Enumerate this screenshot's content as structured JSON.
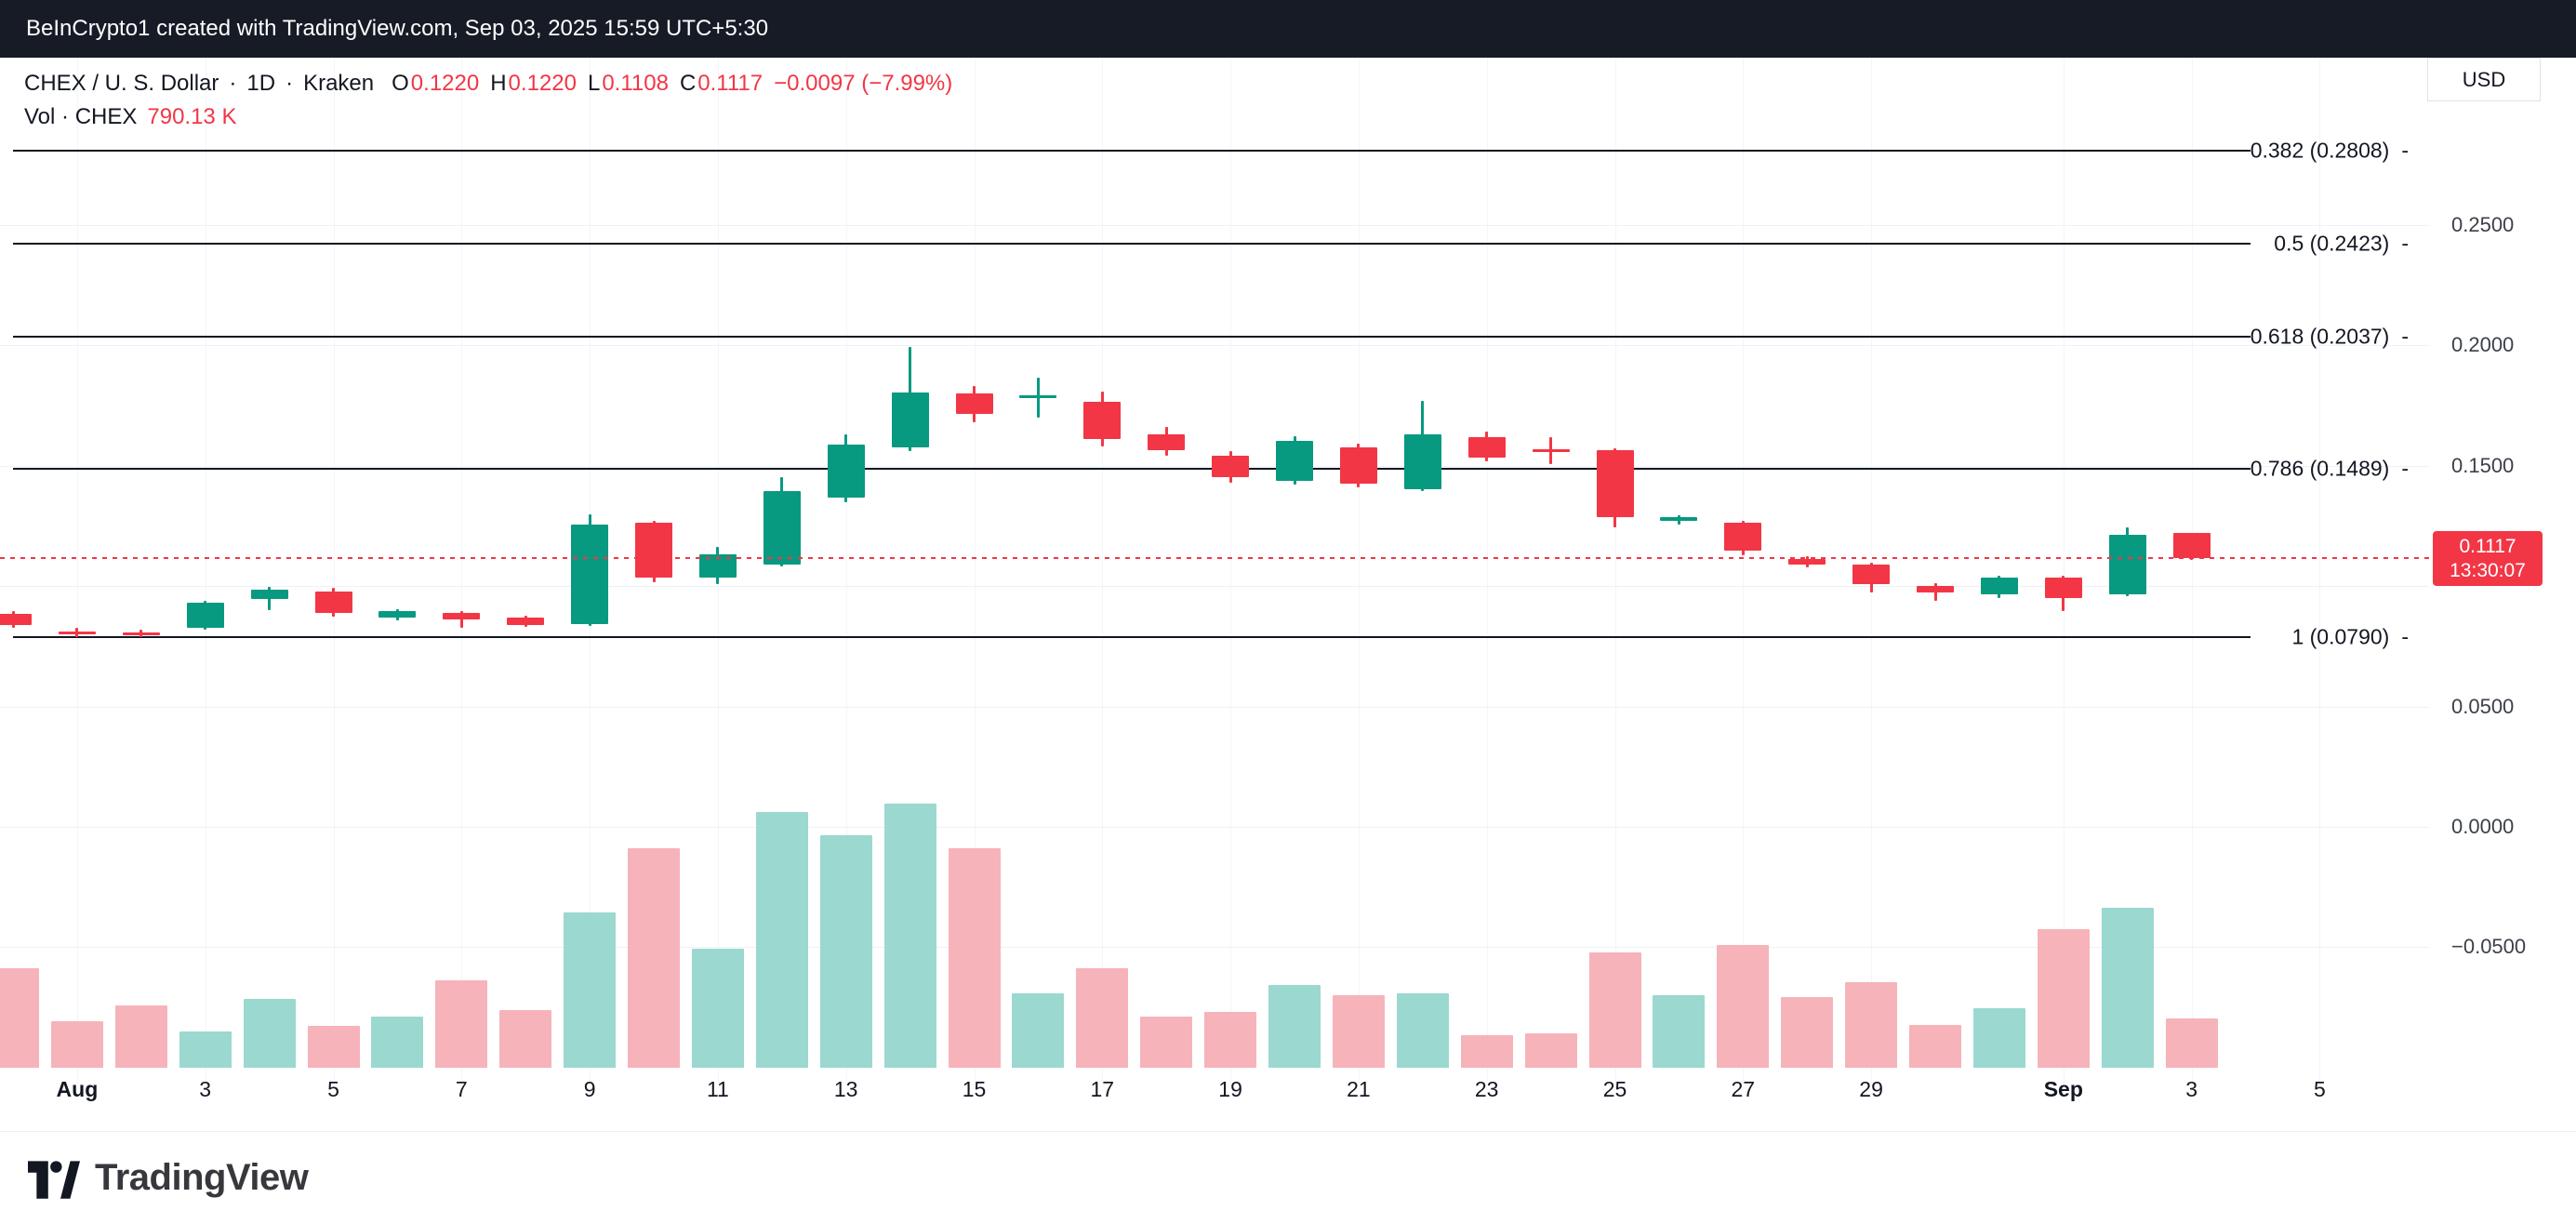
{
  "top_bar": {
    "text": "BeInCrypto1 created with TradingView.com, Sep 03, 2025 15:59 UTC+5:30"
  },
  "header": {
    "symbol": "CHEX / U. S. Dollar",
    "dot": "·",
    "interval": "1D",
    "exchange": "Kraken",
    "o_label": "O",
    "o_value": "0.1220",
    "h_label": "H",
    "h_value": "0.1220",
    "l_label": "L",
    "l_value": "0.1108",
    "c_label": "C",
    "c_value": "0.1117",
    "change": "−0.0097 (−7.99%)",
    "vol_label": "Vol · CHEX",
    "vol_value": "790.13 K"
  },
  "currency_button": {
    "label": "USD"
  },
  "price_axis": {
    "labels": [
      {
        "text": "0.2500",
        "price": 0.25
      },
      {
        "text": "0.2000",
        "price": 0.2
      },
      {
        "text": "0.1500",
        "price": 0.15
      },
      {
        "text": "0.0500",
        "price": 0.05
      },
      {
        "text": "0.0000",
        "price": 0.0
      },
      {
        "text": "−0.0500",
        "price": -0.05
      }
    ],
    "grid_prices": [
      0.25,
      0.2,
      0.15,
      0.1,
      0.05,
      0.0,
      -0.05
    ],
    "last": {
      "price": 0.1117,
      "price_text": "0.1117",
      "countdown": "13:30:07"
    }
  },
  "time_axis": {
    "labels": [
      {
        "text": "Aug",
        "i": 1,
        "bold": true
      },
      {
        "text": "3",
        "i": 3
      },
      {
        "text": "5",
        "i": 5
      },
      {
        "text": "7",
        "i": 7
      },
      {
        "text": "9",
        "i": 9
      },
      {
        "text": "11",
        "i": 11
      },
      {
        "text": "13",
        "i": 13
      },
      {
        "text": "15",
        "i": 15
      },
      {
        "text": "17",
        "i": 17
      },
      {
        "text": "19",
        "i": 19
      },
      {
        "text": "21",
        "i": 21
      },
      {
        "text": "23",
        "i": 23
      },
      {
        "text": "25",
        "i": 25
      },
      {
        "text": "27",
        "i": 27
      },
      {
        "text": "29",
        "i": 29
      },
      {
        "text": "Sep",
        "i": 32,
        "bold": true
      },
      {
        "text": "3",
        "i": 34
      },
      {
        "text": "5",
        "i": 36
      }
    ]
  },
  "fib": {
    "dash": "-",
    "levels": [
      {
        "text": "0.382 (0.2808)",
        "price": 0.2808
      },
      {
        "text": "0.5 (0.2423)",
        "price": 0.2423
      },
      {
        "text": "0.618 (0.2037)",
        "price": 0.2037
      },
      {
        "text": "0.786 (0.1489)",
        "price": 0.1489
      },
      {
        "text": "1 (0.0790)",
        "price": 0.079
      }
    ]
  },
  "footer": {
    "brand": "TradingView"
  },
  "colors": {
    "up": "#089981",
    "down": "#f23645",
    "vol_up": "#9bd8cf",
    "vol_down": "#f6b3ba",
    "accent_red": "#f23645",
    "fib_line": "#11161f",
    "topbar_bg": "#161b26"
  },
  "chart_data": {
    "type": "candlestick",
    "title": "CHEX / U. S. Dollar · 1D · Kraken",
    "volume_pane": true,
    "price_axis_ticks": [
      0.25,
      0.2,
      0.15,
      0.05,
      0.0,
      -0.05
    ],
    "visible_price_range": [
      -0.07,
      0.3
    ],
    "last": {
      "price": 0.1117,
      "change": -0.0097,
      "change_pct": -7.99,
      "countdown": "13:30:07",
      "last_volume": 790130
    },
    "fib_retracement": [
      {
        "level": 0.382,
        "price": 0.2808
      },
      {
        "level": 0.5,
        "price": 0.2423
      },
      {
        "level": 0.618,
        "price": 0.2037
      },
      {
        "level": 0.786,
        "price": 0.1489
      },
      {
        "level": 1,
        "price": 0.079
      }
    ],
    "candles": [
      {
        "t": "Jul 31",
        "o": 0.0885,
        "h": 0.0898,
        "l": 0.0828,
        "c": 0.0838,
        "v": 1580000
      },
      {
        "t": "Aug 1",
        "o": 0.0812,
        "h": 0.0825,
        "l": 0.0788,
        "c": 0.08,
        "v": 737000
      },
      {
        "t": "Aug 2",
        "o": 0.0808,
        "h": 0.0818,
        "l": 0.079,
        "c": 0.0797,
        "v": 1000000
      },
      {
        "t": "Aug 3",
        "o": 0.0827,
        "h": 0.0938,
        "l": 0.082,
        "c": 0.0931,
        "v": 580000
      },
      {
        "t": "Aug 4",
        "o": 0.0945,
        "h": 0.0998,
        "l": 0.0902,
        "c": 0.0986,
        "v": 1100000
      },
      {
        "t": "Aug 5",
        "o": 0.0979,
        "h": 0.0992,
        "l": 0.0875,
        "c": 0.0889,
        "v": 660000
      },
      {
        "t": "Aug 6",
        "o": 0.0868,
        "h": 0.0906,
        "l": 0.0858,
        "c": 0.0896,
        "v": 816000
      },
      {
        "t": "Aug 7",
        "o": 0.0889,
        "h": 0.0898,
        "l": 0.0827,
        "c": 0.0861,
        "v": 1400000
      },
      {
        "t": "Aug 8",
        "o": 0.0868,
        "h": 0.0878,
        "l": 0.083,
        "c": 0.084,
        "v": 920000
      },
      {
        "t": "Aug 9",
        "o": 0.0841,
        "h": 0.1299,
        "l": 0.0835,
        "c": 0.1257,
        "v": 2470000
      },
      {
        "t": "Aug 10",
        "o": 0.1264,
        "h": 0.1272,
        "l": 0.1018,
        "c": 0.1035,
        "v": 3500000
      },
      {
        "t": "Aug 11",
        "o": 0.1035,
        "h": 0.1162,
        "l": 0.1007,
        "c": 0.1132,
        "v": 1900000
      },
      {
        "t": "Aug 12",
        "o": 0.109,
        "h": 0.1451,
        "l": 0.108,
        "c": 0.1396,
        "v": 4080000
      },
      {
        "t": "Aug 13",
        "o": 0.1368,
        "h": 0.1632,
        "l": 0.135,
        "c": 0.159,
        "v": 3710000
      },
      {
        "t": "Aug 14",
        "o": 0.1576,
        "h": 0.1993,
        "l": 0.156,
        "c": 0.1806,
        "v": 4210000
      },
      {
        "t": "Aug 15",
        "o": 0.1799,
        "h": 0.1833,
        "l": 0.168,
        "c": 0.1715,
        "v": 3500000
      },
      {
        "t": "Aug 16",
        "o": 0.1785,
        "h": 0.1868,
        "l": 0.1701,
        "c": 0.1792,
        "v": 1180000
      },
      {
        "t": "Aug 17",
        "o": 0.1764,
        "h": 0.181,
        "l": 0.158,
        "c": 0.1611,
        "v": 1580000
      },
      {
        "t": "Aug 18",
        "o": 0.1632,
        "h": 0.166,
        "l": 0.154,
        "c": 0.1563,
        "v": 816000
      },
      {
        "t": "Aug 19",
        "o": 0.1542,
        "h": 0.1562,
        "l": 0.143,
        "c": 0.1451,
        "v": 895000
      },
      {
        "t": "Aug 20",
        "o": 0.1438,
        "h": 0.1622,
        "l": 0.142,
        "c": 0.1604,
        "v": 1320000
      },
      {
        "t": "Aug 21",
        "o": 0.1576,
        "h": 0.1591,
        "l": 0.141,
        "c": 0.1424,
        "v": 1160000
      },
      {
        "t": "Aug 22",
        "o": 0.1403,
        "h": 0.1771,
        "l": 0.1395,
        "c": 0.1632,
        "v": 1180000
      },
      {
        "t": "Aug 23",
        "o": 0.1618,
        "h": 0.1642,
        "l": 0.1518,
        "c": 0.1535,
        "v": 526000
      },
      {
        "t": "Aug 24",
        "o": 0.1568,
        "h": 0.1618,
        "l": 0.1507,
        "c": 0.1558,
        "v": 553000
      },
      {
        "t": "Aug 25",
        "o": 0.1563,
        "h": 0.1572,
        "l": 0.1243,
        "c": 0.1285,
        "v": 1840000
      },
      {
        "t": "Aug 26",
        "o": 0.1271,
        "h": 0.1293,
        "l": 0.1256,
        "c": 0.1285,
        "v": 1160000
      },
      {
        "t": "Aug 27",
        "o": 0.1264,
        "h": 0.1272,
        "l": 0.113,
        "c": 0.1146,
        "v": 1950000
      },
      {
        "t": "Aug 28",
        "o": 0.1111,
        "h": 0.1126,
        "l": 0.1078,
        "c": 0.109,
        "v": 1130000
      },
      {
        "t": "Aug 29",
        "o": 0.109,
        "h": 0.1098,
        "l": 0.0975,
        "c": 0.1007,
        "v": 1370000
      },
      {
        "t": "Aug 30",
        "o": 0.1,
        "h": 0.1011,
        "l": 0.0938,
        "c": 0.0972,
        "v": 684000
      },
      {
        "t": "Aug 31",
        "o": 0.0966,
        "h": 0.1043,
        "l": 0.0951,
        "c": 0.1035,
        "v": 947000
      },
      {
        "t": "Sep 1",
        "o": 0.1035,
        "h": 0.1043,
        "l": 0.0896,
        "c": 0.0952,
        "v": 2210000
      },
      {
        "t": "Sep 2",
        "o": 0.0966,
        "h": 0.1243,
        "l": 0.096,
        "c": 0.1215,
        "v": 2550000
      },
      {
        "t": "Sep 3",
        "o": 0.122,
        "h": 0.122,
        "l": 0.1108,
        "c": 0.1117,
        "v": 790130
      }
    ]
  }
}
